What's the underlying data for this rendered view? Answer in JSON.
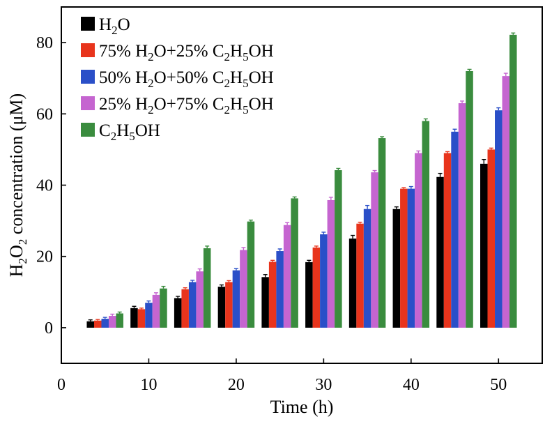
{
  "chart_data": {
    "type": "bar",
    "title": "",
    "xlabel": "Time (h)",
    "ylabel": {
      "prefix": "H",
      "sub": "2",
      "mid": "O",
      "sub2": "2",
      "suffix": " concentration (μM)"
    },
    "xlim": [
      0,
      55
    ],
    "ylim": [
      -10,
      90
    ],
    "xticks": [
      0,
      10,
      20,
      30,
      40,
      50
    ],
    "yticks": [
      0,
      20,
      40,
      60,
      80
    ],
    "x": [
      5,
      10,
      15,
      20,
      25,
      30,
      35,
      40,
      45,
      50
    ],
    "error_bars": true,
    "grid": false,
    "legend_position": "top-left",
    "series": [
      {
        "name": "H2O",
        "label_parts": [
          [
            "H",
            ""
          ],
          [
            "2",
            "sub"
          ],
          [
            "O",
            ""
          ]
        ],
        "color": "#000000",
        "values": [
          1.8,
          5.5,
          8.3,
          11.5,
          14.2,
          18.4,
          25.0,
          33.3,
          42.3,
          46.0
        ],
        "errors": [
          0.4,
          0.5,
          0.5,
          0.5,
          0.7,
          0.5,
          0.9,
          0.6,
          1.0,
          1.2
        ]
      },
      {
        "name": "75% H2O+25% C2H5OH",
        "label_parts": [
          [
            "75% H",
            ""
          ],
          [
            "2",
            "sub"
          ],
          [
            "O+25% C",
            ""
          ],
          [
            "2",
            "sub"
          ],
          [
            "H",
            ""
          ],
          [
            "5",
            "sub"
          ],
          [
            "OH",
            ""
          ]
        ],
        "color": "#e8341c",
        "values": [
          2.0,
          5.2,
          10.8,
          12.8,
          18.5,
          22.5,
          29.2,
          39.0,
          49.0,
          50.0
        ],
        "errors": [
          0.3,
          0.3,
          0.4,
          0.4,
          0.4,
          0.4,
          0.4,
          0.3,
          0.4,
          0.4
        ]
      },
      {
        "name": "50% H2O+50% C2H5OH",
        "label_parts": [
          [
            "50% H",
            ""
          ],
          [
            "2",
            "sub"
          ],
          [
            "O+50% C",
            ""
          ],
          [
            "2",
            "sub"
          ],
          [
            "H",
            ""
          ],
          [
            "5",
            "sub"
          ],
          [
            "OH",
            ""
          ]
        ],
        "color": "#2a4fc8",
        "values": [
          2.5,
          7.0,
          12.8,
          16.1,
          21.5,
          26.2,
          33.3,
          39.0,
          55.0,
          61.0
        ],
        "errors": [
          0.4,
          0.5,
          0.5,
          0.5,
          0.6,
          0.6,
          1.0,
          0.6,
          0.7,
          0.7
        ]
      },
      {
        "name": "25% H2O+75% C2H5OH",
        "label_parts": [
          [
            "25% H",
            ""
          ],
          [
            "2",
            "sub"
          ],
          [
            "O+75% C",
            ""
          ],
          [
            "2",
            "sub"
          ],
          [
            "H",
            ""
          ],
          [
            "5",
            "sub"
          ],
          [
            "OH",
            ""
          ]
        ],
        "color": "#c565d0",
        "values": [
          3.3,
          9.2,
          15.8,
          21.8,
          28.8,
          35.8,
          43.6,
          49.0,
          63.0,
          70.6
        ],
        "errors": [
          0.5,
          0.6,
          0.7,
          0.7,
          0.7,
          0.8,
          0.5,
          0.6,
          0.6,
          0.8
        ]
      },
      {
        "name": "C2H5OH",
        "label_parts": [
          [
            "C",
            ""
          ],
          [
            "2",
            "sub"
          ],
          [
            "H",
            ""
          ],
          [
            "5",
            "sub"
          ],
          [
            "OH",
            ""
          ]
        ],
        "color": "#3a8c3e",
        "values": [
          4.0,
          11.0,
          22.3,
          29.8,
          36.3,
          44.2,
          53.2,
          58.0,
          72.0,
          82.2
        ],
        "errors": [
          0.4,
          0.6,
          0.6,
          0.4,
          0.4,
          0.5,
          0.4,
          0.6,
          0.5,
          0.5
        ]
      }
    ]
  }
}
